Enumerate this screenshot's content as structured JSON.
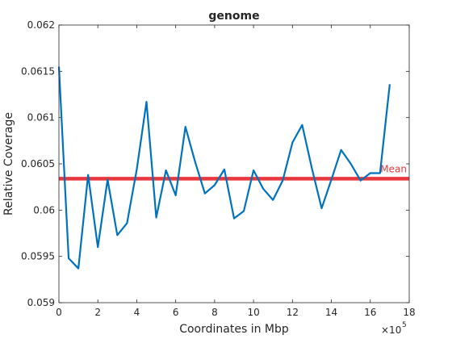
{
  "chart_data": {
    "type": "line",
    "title": "genome",
    "xlabel": "Coordinates in Mbp",
    "ylabel": "Relative Coverage",
    "x_exponent_label": "×10",
    "x_exponent_power": "5",
    "xlim": [
      0,
      1800000
    ],
    "ylim": [
      0.059,
      0.062
    ],
    "xticks": [
      0,
      200000,
      400000,
      600000,
      800000,
      1000000,
      1200000,
      1400000,
      1600000,
      1800000
    ],
    "xtick_labels": [
      "0",
      "2",
      "4",
      "6",
      "8",
      "10",
      "12",
      "14",
      "16",
      "18"
    ],
    "yticks": [
      0.059,
      0.0595,
      0.06,
      0.0605,
      0.061,
      0.0615,
      0.062
    ],
    "ytick_labels": [
      "0.059",
      "0.0595",
      "0.06",
      "0.0605",
      "0.061",
      "0.0615",
      "0.062"
    ],
    "grid": false,
    "series": [
      {
        "color": "#0072BD",
        "x": [
          0,
          50000,
          100000,
          150000,
          200000,
          250000,
          300000,
          350000,
          400000,
          450000,
          500000,
          550000,
          600000,
          650000,
          700000,
          750000,
          800000,
          850000,
          900000,
          950000,
          1000000,
          1050000,
          1100000,
          1150000,
          1200000,
          1250000,
          1300000,
          1350000,
          1400000,
          1450000,
          1500000,
          1550000,
          1600000,
          1650000,
          1700000
        ],
        "y": [
          0.06155,
          0.05948,
          0.05937,
          0.06038,
          0.0596,
          0.06033,
          0.05973,
          0.05986,
          0.06044,
          0.06117,
          0.05992,
          0.06043,
          0.06016,
          0.0609,
          0.06052,
          0.06018,
          0.06027,
          0.06044,
          0.05991,
          0.05999,
          0.06043,
          0.06023,
          0.06011,
          0.06032,
          0.06073,
          0.06092,
          0.06045,
          0.06002,
          0.06033,
          0.06065,
          0.0605,
          0.06032,
          0.0604,
          0.0604,
          0.06136
        ]
      }
    ],
    "reference_line": {
      "label": "Mean",
      "y": 0.06034,
      "color": "#E8383D"
    }
  }
}
